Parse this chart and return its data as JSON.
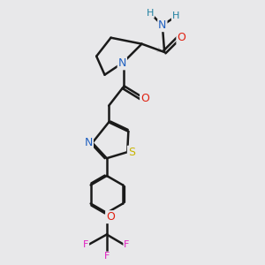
{
  "background_color": "#e8e8ea",
  "bond_color": "#1a1a1a",
  "bond_width": 1.8,
  "atom_colors": {
    "N": "#2060c0",
    "O": "#e02010",
    "S": "#c8b400",
    "F": "#e020c0",
    "H": "#2080a0",
    "C": "#1a1a1a"
  },
  "figsize": [
    3.0,
    3.0
  ],
  "dpi": 100
}
